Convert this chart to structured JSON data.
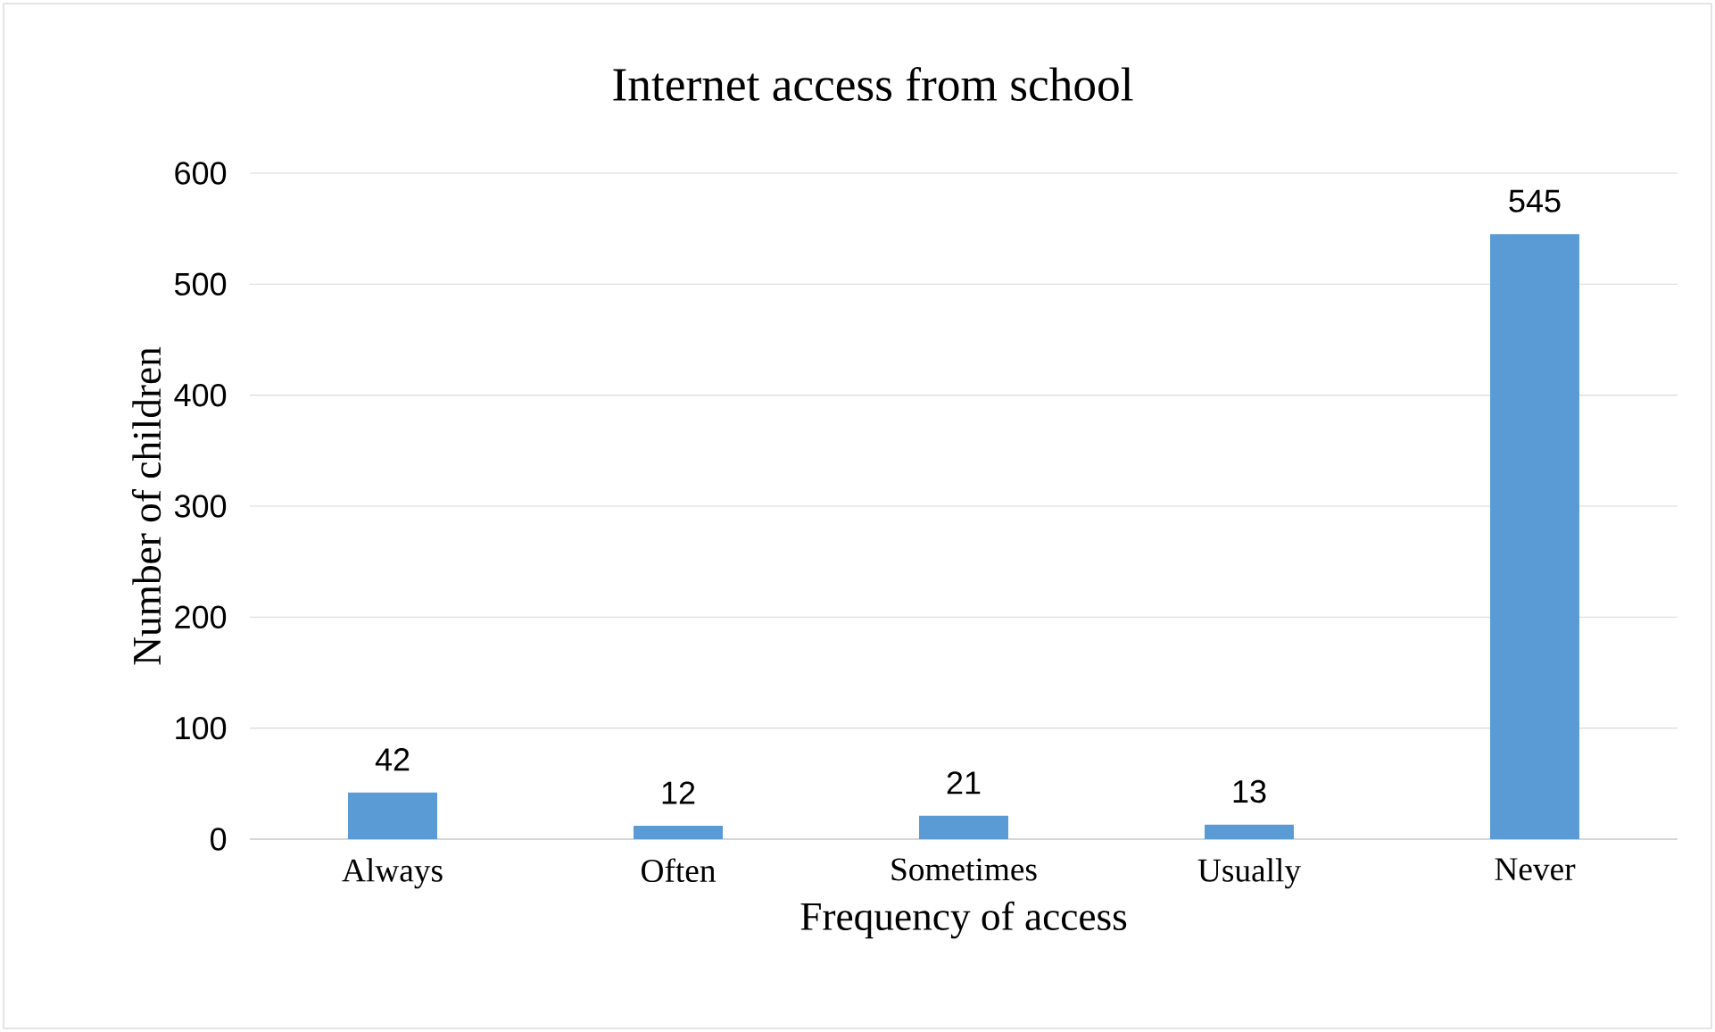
{
  "chart_data": {
    "type": "bar",
    "title": "Internet access from school",
    "xlabel": "Frequency of access",
    "ylabel": "Number of children",
    "categories": [
      "Always",
      "Often",
      "Sometimes",
      "Usually",
      "Never"
    ],
    "values": [
      42,
      12,
      21,
      13,
      545
    ],
    "color": "#5b9bd5",
    "ylim": [
      0,
      600
    ],
    "yticks": [
      0,
      100,
      200,
      300,
      400,
      500,
      600
    ],
    "grid": "y",
    "data_labels": true
  }
}
